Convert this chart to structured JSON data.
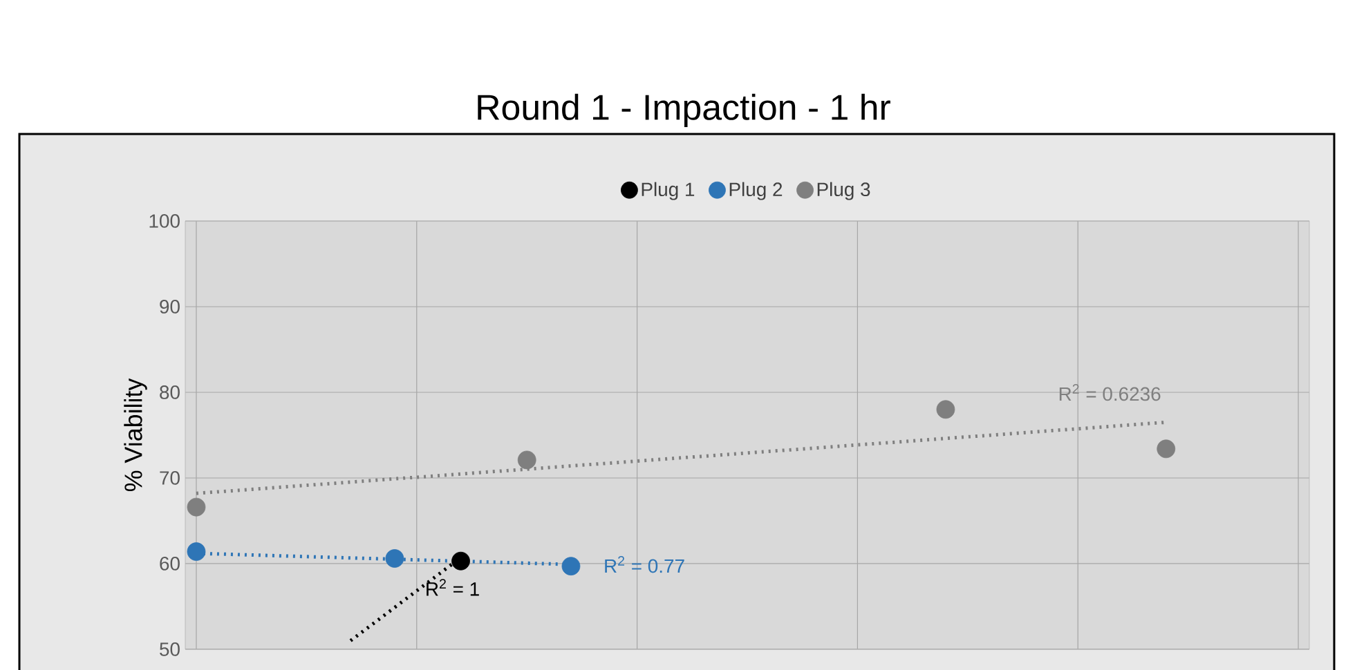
{
  "chart_data": {
    "type": "scatter",
    "title": "Round 1 - Impaction - 1 hr",
    "ylabel": "% Viability",
    "categories": [
      null,
      null,
      null,
      null,
      null,
      null,
      null,
      null,
      null,
      null,
      null,
      null,
      null,
      null,
      null,
      null,
      null,
      null,
      null,
      null,
      null,
      null,
      null,
      null,
      null,
      null,
      null,
      null,
      null,
      null,
      null,
      null,
      null,
      null,
      null,
      null,
      null,
      null,
      null,
      null,
      null,
      null,
      null,
      null,
      null,
      null,
      null,
      null,
      null,
      null,
      null
    ],
    "ylim": [
      50,
      100
    ],
    "yticks": [
      50,
      60,
      70,
      80,
      90,
      100
    ],
    "tick_labels": "y",
    "grid": true,
    "legend": "top",
    "marker": "circle",
    "series": [
      {
        "name": "Plug 1",
        "color": "#000000",
        "values": [
          null,
          null,
          null,
          null,
          null,
          null,
          null,
          null,
          null,
          null,
          null,
          null,
          60.3,
          null,
          null,
          null,
          null,
          null,
          null,
          null,
          null,
          null,
          null,
          null,
          null,
          null,
          null,
          null,
          null,
          null,
          null,
          null,
          null,
          null,
          null,
          null,
          null,
          null,
          null,
          null,
          null,
          null,
          null,
          null,
          null,
          null,
          null,
          null,
          null,
          null,
          null
        ]
      },
      {
        "name": "Plug 2",
        "color": "#2e75b6",
        "values": [
          61.4,
          null,
          null,
          null,
          null,
          null,
          null,
          null,
          null,
          60.6,
          null,
          null,
          null,
          null,
          null,
          null,
          null,
          59.7,
          null,
          null,
          null,
          null,
          null,
          null,
          null,
          null,
          null,
          null,
          null,
          null,
          null,
          null,
          null,
          null,
          null,
          null,
          null,
          null,
          null,
          null,
          null,
          null,
          null,
          null,
          null,
          null,
          null,
          null,
          null,
          null,
          null
        ]
      },
      {
        "name": "Plug 3",
        "color": "#7f7f7f",
        "values": [
          66.6,
          null,
          null,
          null,
          null,
          null,
          null,
          null,
          null,
          null,
          null,
          null,
          null,
          null,
          null,
          72.1,
          null,
          null,
          null,
          null,
          null,
          null,
          null,
          null,
          null,
          null,
          null,
          null,
          null,
          null,
          null,
          null,
          null,
          null,
          78.0,
          null,
          null,
          null,
          null,
          null,
          null,
          null,
          null,
          null,
          73.4,
          null,
          null,
          null,
          null,
          null,
          null
        ]
      },
      {
        "type": "line",
        "color": "#000000",
        "line_style": "dotted",
        "marker": "none",
        "values": [
          null,
          null,
          null,
          null,
          null,
          null,
          null,
          51.0,
          null,
          null,
          null,
          null,
          60.7,
          null,
          null,
          null,
          null,
          null,
          null,
          null,
          null,
          null,
          null,
          null,
          null,
          null,
          null,
          null,
          null,
          null,
          null,
          null,
          null,
          null,
          null,
          null,
          null,
          null,
          null,
          null,
          null,
          null,
          null,
          null,
          null,
          null,
          null,
          null,
          null,
          null,
          null
        ]
      },
      {
        "type": "line",
        "color": "#2e75b6",
        "line_style": "dotted",
        "marker": "none",
        "values": [
          61.2,
          null,
          null,
          null,
          null,
          null,
          null,
          null,
          null,
          null,
          null,
          null,
          null,
          null,
          null,
          null,
          null,
          59.9,
          null,
          null,
          null,
          null,
          null,
          null,
          null,
          null,
          null,
          null,
          null,
          null,
          null,
          null,
          null,
          null,
          null,
          null,
          null,
          null,
          null,
          null,
          null,
          null,
          null,
          null,
          null,
          null,
          null,
          null,
          null,
          null,
          null
        ]
      },
      {
        "type": "line",
        "color": "#7f7f7f",
        "line_style": "dotted",
        "marker": "none",
        "values": [
          68.2,
          null,
          null,
          null,
          null,
          null,
          null,
          null,
          null,
          null,
          null,
          null,
          null,
          null,
          null,
          null,
          null,
          null,
          null,
          null,
          null,
          null,
          null,
          null,
          null,
          null,
          null,
          null,
          null,
          null,
          null,
          null,
          null,
          null,
          null,
          null,
          null,
          null,
          null,
          null,
          null,
          null,
          null,
          null,
          76.5,
          null,
          null,
          null,
          null,
          null,
          null
        ]
      }
    ],
    "annotations": [
      "R$^{2}$ = 1",
      "R$^{2}$ = 0.77",
      "R$^{2}$ = 0.6236"
    ]
  }
}
